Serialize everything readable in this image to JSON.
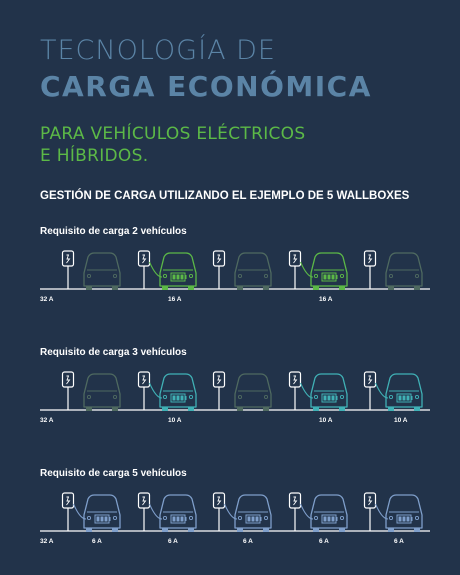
{
  "title": {
    "line1": "TECNOLOGÍA DE",
    "line2": "CARGA ECONÓMICA"
  },
  "subtitle": {
    "line1": "PARA VEHÍCULOS ELÉCTRICOS",
    "line2": "E HÍBRIDOS."
  },
  "heading": "GESTIÓN DE CARGA UTILIZANDO EL EJEMPLO DE 5 WALLBOXES",
  "colors": {
    "background": "#22334a",
    "title": "#5b84a6",
    "subtitle_green": "#5cb947",
    "inactive_car": "#4f6a60",
    "green_car": "#5cb947",
    "teal_car": "#40b1b6",
    "blue_car": "#7f9fcb",
    "wallbox": "#ffffff"
  },
  "scenarios": [
    {
      "label": "Requisito de carga 2 vehículos",
      "grid_value": "32 A",
      "slots": [
        {
          "car": "inactive",
          "current": ""
        },
        {
          "car": "charging-green",
          "current": "16 A"
        },
        {
          "car": "inactive",
          "current": ""
        },
        {
          "car": "charging-green",
          "current": "16 A"
        },
        {
          "car": "inactive",
          "current": ""
        }
      ]
    },
    {
      "label": "Requisito de carga 3 vehículos",
      "grid_value": "32 A",
      "slots": [
        {
          "car": "inactive",
          "current": ""
        },
        {
          "car": "charging-teal",
          "current": "10 A"
        },
        {
          "car": "inactive",
          "current": ""
        },
        {
          "car": "charging-teal",
          "current": "10 A"
        },
        {
          "car": "charging-teal",
          "current": "10 A"
        }
      ]
    },
    {
      "label": "Requisito de carga 5 vehículos",
      "grid_value": "32 A",
      "slots": [
        {
          "car": "charging-blue",
          "current": "6 A"
        },
        {
          "car": "charging-blue",
          "current": "6 A"
        },
        {
          "car": "charging-blue",
          "current": "6 A"
        },
        {
          "car": "charging-blue",
          "current": "6 A"
        },
        {
          "car": "charging-blue",
          "current": "6 A"
        }
      ]
    }
  ]
}
